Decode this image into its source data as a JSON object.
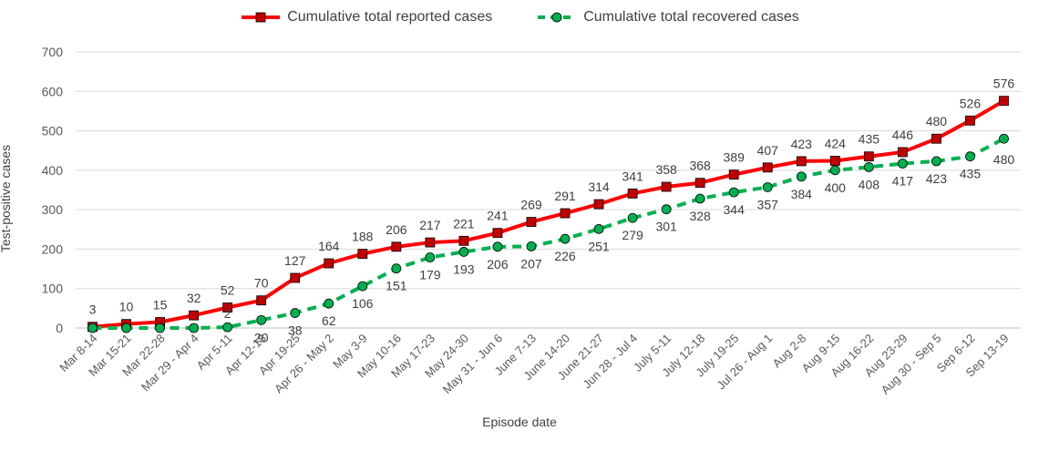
{
  "chart_data": {
    "type": "line",
    "xlabel": "Episode date",
    "ylabel": "Test-positive cases",
    "ylim": [
      0,
      700
    ],
    "yticks": [
      0,
      100,
      200,
      300,
      400,
      500,
      600,
      700
    ],
    "grid": true,
    "legend_position": "top",
    "categories": [
      "Mar 8-14",
      "Mar 15-21",
      "Mar 22-28",
      "Mar 29 - Apr 4",
      "Apr 5-11",
      "Apr 12-18",
      "Apr 19-25",
      "Apr 26 - May 2",
      "May 3-9",
      "May 10-16",
      "May 17-23",
      "May 24-30",
      "May 31 - Jun 6",
      "June 7-13",
      "June 14-20",
      "June 21-27",
      "Jun 28 - Jul 4",
      "July 5-11",
      "July 12-18",
      "July 19-25",
      "Jul 26 - Aug 1",
      "Aug 2-8",
      "Aug 9-15",
      "Aug 16-22",
      "Aug 23-29",
      "Aug 30 - Sep 5",
      "Sep 6-12",
      "Sep 13-19"
    ],
    "series": [
      {
        "name": "Cumulative total reported cases",
        "color": "#ff0000",
        "marker_fill": "#c00000",
        "style": "solid",
        "marker": "square",
        "values": [
          3,
          10,
          15,
          32,
          52,
          70,
          127,
          164,
          188,
          206,
          217,
          221,
          241,
          269,
          291,
          314,
          341,
          358,
          368,
          389,
          407,
          423,
          424,
          435,
          446,
          480,
          526,
          576
        ]
      },
      {
        "name": "Cumulative total recovered cases",
        "color": "#00b050",
        "marker_fill": "#00b050",
        "style": "dashed",
        "marker": "circle",
        "values": [
          0,
          0,
          0,
          0,
          2,
          20,
          38,
          62,
          106,
          151,
          179,
          193,
          206,
          207,
          226,
          251,
          279,
          301,
          328,
          344,
          357,
          384,
          400,
          408,
          417,
          423,
          435,
          480
        ]
      }
    ]
  }
}
